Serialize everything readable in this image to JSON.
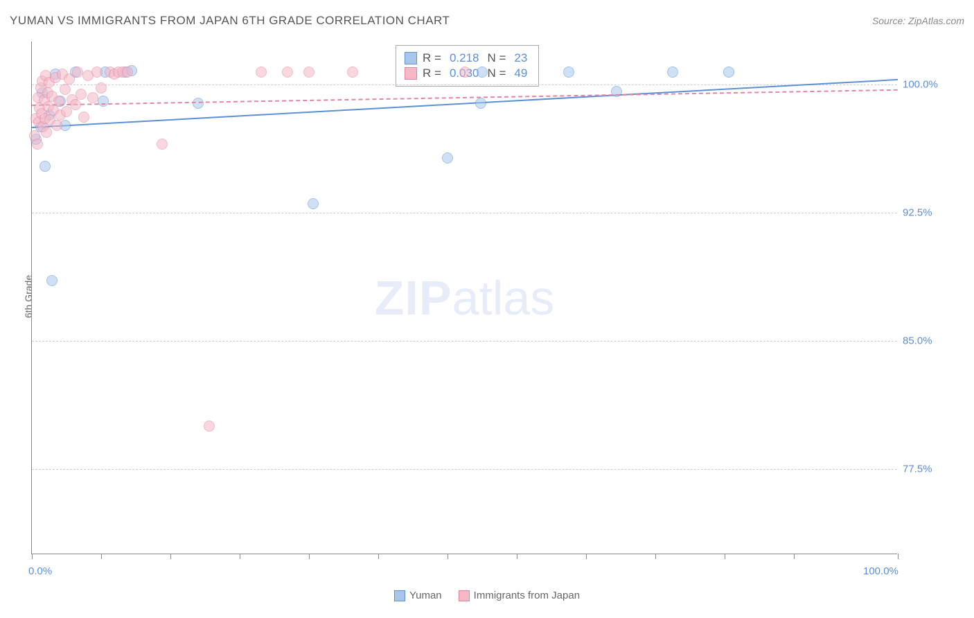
{
  "title": "YUMAN VS IMMIGRANTS FROM JAPAN 6TH GRADE CORRELATION CHART",
  "source": "Source: ZipAtlas.com",
  "y_axis_label": "6th Grade",
  "watermark_bold": "ZIP",
  "watermark_light": "atlas",
  "chart": {
    "type": "scatter",
    "xlim": [
      0,
      100
    ],
    "ylim": [
      72.5,
      102.5
    ],
    "x_ticks": [
      0,
      8,
      16,
      24,
      32,
      40,
      48,
      56,
      64,
      72,
      80,
      88,
      100
    ],
    "x_tick_labels_shown": {
      "0": "0.0%",
      "100": "100.0%"
    },
    "y_ticks": [
      77.5,
      85.0,
      92.5,
      100.0
    ],
    "y_tick_labels": [
      "77.5%",
      "85.0%",
      "92.5%",
      "100.0%"
    ],
    "grid_color": "#cccccc",
    "background_color": "#ffffff",
    "axes_color": "#888888",
    "marker_radius": 8,
    "marker_stroke_width": 1.5,
    "series": [
      {
        "name": "Yuman",
        "fill_color": "#a9c7ec",
        "stroke_color": "#5b8fd6",
        "fill_opacity": 0.55,
        "trend": {
          "y_at_x0": 97.5,
          "y_at_x100": 100.3,
          "color": "#5b8fd6",
          "dashed": false
        },
        "stats": {
          "R": "0.218",
          "N": "23"
        },
        "points": [
          {
            "x": 0.5,
            "y": 96.8
          },
          {
            "x": 1.0,
            "y": 97.5
          },
          {
            "x": 1.2,
            "y": 99.5
          },
          {
            "x": 1.5,
            "y": 95.2
          },
          {
            "x": 2.0,
            "y": 98.2
          },
          {
            "x": 2.3,
            "y": 88.5
          },
          {
            "x": 2.7,
            "y": 100.6
          },
          {
            "x": 3.3,
            "y": 99.0
          },
          {
            "x": 3.8,
            "y": 97.6
          },
          {
            "x": 5.0,
            "y": 100.7
          },
          {
            "x": 8.2,
            "y": 99.0
          },
          {
            "x": 8.5,
            "y": 100.7
          },
          {
            "x": 10.8,
            "y": 100.7
          },
          {
            "x": 11.5,
            "y": 100.8
          },
          {
            "x": 19.2,
            "y": 98.9
          },
          {
            "x": 32.5,
            "y": 93.0
          },
          {
            "x": 48.0,
            "y": 95.7
          },
          {
            "x": 51.8,
            "y": 98.9
          },
          {
            "x": 62.0,
            "y": 100.7
          },
          {
            "x": 67.5,
            "y": 99.6
          },
          {
            "x": 74.0,
            "y": 100.7
          },
          {
            "x": 80.5,
            "y": 100.7
          },
          {
            "x": 52.0,
            "y": 100.7
          }
        ]
      },
      {
        "name": "Immigrants from Japan",
        "fill_color": "#f4b8c6",
        "stroke_color": "#e583a0",
        "fill_opacity": 0.55,
        "trend": {
          "y_at_x0": 98.8,
          "y_at_x100": 99.7,
          "color": "#e583a0",
          "dashed": true
        },
        "stats": {
          "R": "0.030",
          "N": "49"
        },
        "points": [
          {
            "x": 0.3,
            "y": 97.0
          },
          {
            "x": 0.5,
            "y": 98.0
          },
          {
            "x": 0.6,
            "y": 96.5
          },
          {
            "x": 0.7,
            "y": 99.2
          },
          {
            "x": 0.8,
            "y": 97.8
          },
          {
            "x": 0.9,
            "y": 98.6
          },
          {
            "x": 1.0,
            "y": 99.8
          },
          {
            "x": 1.1,
            "y": 98.3
          },
          {
            "x": 1.2,
            "y": 100.2
          },
          {
            "x": 1.3,
            "y": 97.5
          },
          {
            "x": 1.4,
            "y": 99.1
          },
          {
            "x": 1.5,
            "y": 98.0
          },
          {
            "x": 1.6,
            "y": 100.5
          },
          {
            "x": 1.7,
            "y": 97.2
          },
          {
            "x": 1.8,
            "y": 99.5
          },
          {
            "x": 1.9,
            "y": 98.7
          },
          {
            "x": 2.0,
            "y": 100.1
          },
          {
            "x": 2.1,
            "y": 97.9
          },
          {
            "x": 2.3,
            "y": 99.3
          },
          {
            "x": 2.5,
            "y": 98.5
          },
          {
            "x": 2.7,
            "y": 100.4
          },
          {
            "x": 2.9,
            "y": 97.6
          },
          {
            "x": 3.1,
            "y": 99.0
          },
          {
            "x": 3.3,
            "y": 98.2
          },
          {
            "x": 3.5,
            "y": 100.6
          },
          {
            "x": 3.8,
            "y": 99.7
          },
          {
            "x": 4.0,
            "y": 98.4
          },
          {
            "x": 4.3,
            "y": 100.3
          },
          {
            "x": 4.6,
            "y": 99.1
          },
          {
            "x": 5.0,
            "y": 98.8
          },
          {
            "x": 5.3,
            "y": 100.7
          },
          {
            "x": 5.7,
            "y": 99.4
          },
          {
            "x": 6.0,
            "y": 98.1
          },
          {
            "x": 6.5,
            "y": 100.5
          },
          {
            "x": 7.0,
            "y": 99.2
          },
          {
            "x": 7.5,
            "y": 100.7
          },
          {
            "x": 8.0,
            "y": 99.8
          },
          {
            "x": 9.0,
            "y": 100.7
          },
          {
            "x": 9.5,
            "y": 100.6
          },
          {
            "x": 10.0,
            "y": 100.7
          },
          {
            "x": 10.5,
            "y": 100.7
          },
          {
            "x": 11.0,
            "y": 100.7
          },
          {
            "x": 15.0,
            "y": 96.5
          },
          {
            "x": 20.5,
            "y": 80.0
          },
          {
            "x": 26.5,
            "y": 100.7
          },
          {
            "x": 29.5,
            "y": 100.7
          },
          {
            "x": 32.0,
            "y": 100.7
          },
          {
            "x": 37.0,
            "y": 100.7
          },
          {
            "x": 50.0,
            "y": 100.7
          }
        ]
      }
    ]
  },
  "legend": {
    "items": [
      {
        "label": "Yuman",
        "fill": "#a9c7ec",
        "stroke": "#5b8fd6"
      },
      {
        "label": "Immigrants from Japan",
        "fill": "#f4b8c6",
        "stroke": "#e583a0"
      }
    ]
  }
}
